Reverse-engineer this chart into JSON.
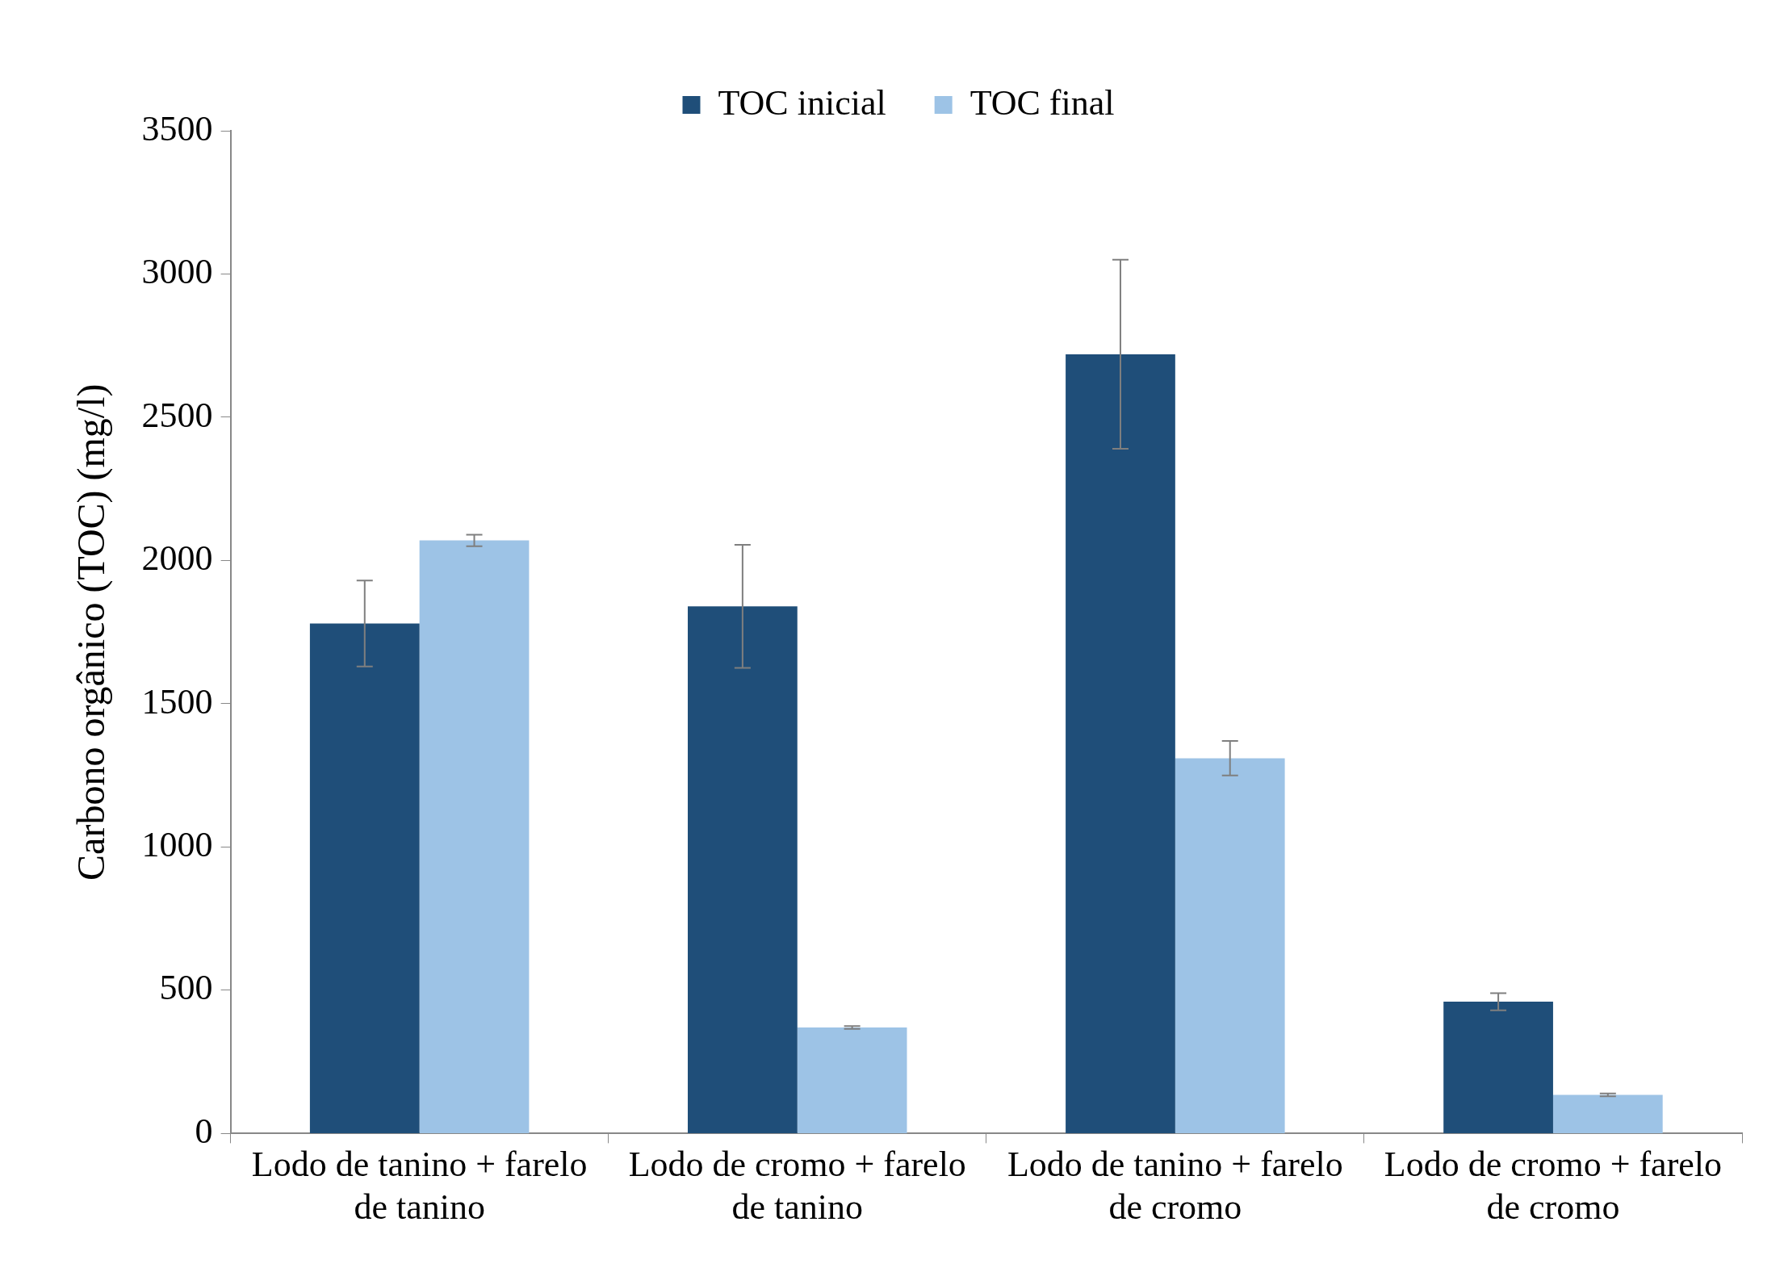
{
  "chart_data": {
    "type": "bar",
    "ylabel": "Carbono orgânico (TOC) (mg/l)",
    "categories": [
      "Lodo de tanino + farelo de tanino",
      "Lodo de cromo + farelo de tanino",
      "Lodo de tanino + farelo de cromo",
      "Lodo de cromo + farelo de cromo"
    ],
    "series": [
      {
        "name": "TOC inicial",
        "color": "#1f4e79",
        "values": [
          1780,
          1840,
          2720,
          460
        ],
        "errors": [
          150,
          215,
          330,
          30
        ]
      },
      {
        "name": "TOC final",
        "color": "#9dc3e6",
        "values": [
          2070,
          370,
          1310,
          135
        ],
        "errors": [
          20,
          5,
          60,
          5
        ]
      }
    ],
    "ylim": [
      0,
      3500
    ],
    "yticks": [
      0,
      500,
      1000,
      1500,
      2000,
      2500,
      3000,
      3500
    ],
    "grid": false,
    "legend": "top"
  }
}
